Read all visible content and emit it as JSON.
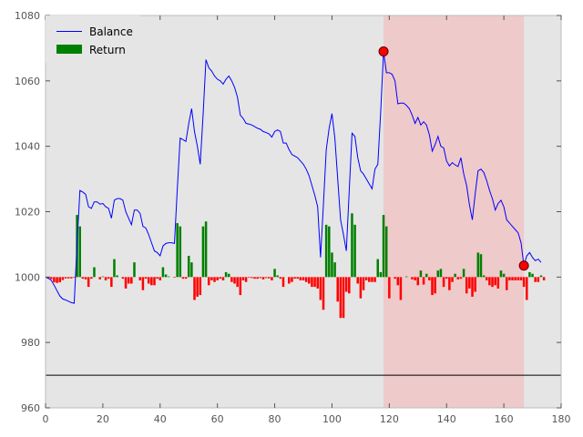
{
  "chart_data": {
    "type": "line",
    "title": "",
    "xlabel": "",
    "ylabel": "",
    "xlim": [
      0,
      180
    ],
    "ylim": [
      960,
      1080
    ],
    "x_ticks": [
      "0",
      "20",
      "40",
      "60",
      "80",
      "100",
      "120",
      "140",
      "160",
      "180"
    ],
    "y_ticks": [
      "960",
      "980",
      "1000",
      "1020",
      "1040",
      "1060",
      "1080"
    ],
    "grid": false,
    "legend_position": "top-left",
    "baseline": 970,
    "baseline_color": "#000000",
    "background_color": "#e5e5e5",
    "shaded_region": {
      "x_start": 118,
      "x_end": 167,
      "color": "#ff9999"
    },
    "markers": [
      {
        "x": 118,
        "y": 1069,
        "color": "#ff0000"
      },
      {
        "x": 167,
        "y": 1003.5,
        "color": "#ff0000"
      }
    ],
    "series": [
      {
        "name": "Balance",
        "kind": "line",
        "color": "#0000ff",
        "points": [
          [
            0,
            1000
          ],
          [
            1,
            999.6
          ],
          [
            2,
            999
          ],
          [
            3,
            997.5
          ],
          [
            4,
            995.8
          ],
          [
            5,
            994.2
          ],
          [
            6,
            993.3
          ],
          [
            7,
            993
          ],
          [
            8,
            992.6
          ],
          [
            9,
            992.2
          ],
          [
            10,
            992
          ],
          [
            11,
            1010
          ],
          [
            12,
            1026.5
          ],
          [
            13,
            1026
          ],
          [
            14,
            1025.3
          ],
          [
            15,
            1021.5
          ],
          [
            16,
            1021
          ],
          [
            17,
            1023
          ],
          [
            18,
            1023
          ],
          [
            19,
            1022.3
          ],
          [
            20,
            1022.5
          ],
          [
            21,
            1021.5
          ],
          [
            22,
            1021
          ],
          [
            23,
            1018
          ],
          [
            24,
            1023.5
          ],
          [
            25,
            1024
          ],
          [
            26,
            1024
          ],
          [
            27,
            1023.5
          ],
          [
            28,
            1020
          ],
          [
            29,
            1018
          ],
          [
            30,
            1016
          ],
          [
            31,
            1020.5
          ],
          [
            32,
            1020.5
          ],
          [
            33,
            1019.5
          ],
          [
            34,
            1015.5
          ],
          [
            35,
            1015
          ],
          [
            36,
            1013
          ],
          [
            37,
            1010.5
          ],
          [
            38,
            1008
          ],
          [
            39,
            1007.5
          ],
          [
            40,
            1006.5
          ],
          [
            41,
            1009.5
          ],
          [
            42,
            1010.3
          ],
          [
            43,
            1010.5
          ],
          [
            44,
            1010.5
          ],
          [
            45,
            1010.3
          ],
          [
            46,
            1027
          ],
          [
            47,
            1042.5
          ],
          [
            48,
            1042
          ],
          [
            49,
            1041.5
          ],
          [
            50,
            1047
          ],
          [
            51,
            1051.5
          ],
          [
            52,
            1044.5
          ],
          [
            53,
            1040
          ],
          [
            54,
            1034.5
          ],
          [
            55,
            1049.5
          ],
          [
            56,
            1066.5
          ],
          [
            57,
            1064
          ],
          [
            58,
            1063
          ],
          [
            59,
            1061.5
          ],
          [
            60,
            1060.5
          ],
          [
            61,
            1060
          ],
          [
            62,
            1059
          ],
          [
            63,
            1060.5
          ],
          [
            64,
            1061.5
          ],
          [
            65,
            1060
          ],
          [
            66,
            1058
          ],
          [
            67,
            1055
          ],
          [
            68,
            1049.5
          ],
          [
            69,
            1048.5
          ],
          [
            70,
            1047
          ],
          [
            71,
            1046.8
          ],
          [
            72,
            1046.5
          ],
          [
            73,
            1046
          ],
          [
            74,
            1045.5
          ],
          [
            75,
            1045.2
          ],
          [
            76,
            1044.5
          ],
          [
            77,
            1044.2
          ],
          [
            78,
            1043.8
          ],
          [
            79,
            1042.8
          ],
          [
            80,
            1044.5
          ],
          [
            81,
            1045
          ],
          [
            82,
            1044.5
          ],
          [
            83,
            1041
          ],
          [
            84,
            1041
          ],
          [
            85,
            1039
          ],
          [
            86,
            1037.5
          ],
          [
            87,
            1037
          ],
          [
            88,
            1036.5
          ],
          [
            89,
            1035.5
          ],
          [
            90,
            1034.5
          ],
          [
            91,
            1033
          ],
          [
            92,
            1031
          ],
          [
            93,
            1028
          ],
          [
            94,
            1025
          ],
          [
            95,
            1021.5
          ],
          [
            96,
            1006
          ],
          [
            97,
            1022
          ],
          [
            98,
            1039
          ],
          [
            99,
            1045.5
          ],
          [
            100,
            1050
          ],
          [
            101,
            1042.5
          ],
          [
            102,
            1030
          ],
          [
            103,
            1017.5
          ],
          [
            104,
            1013
          ],
          [
            105,
            1008
          ],
          [
            106,
            1026
          ],
          [
            107,
            1044
          ],
          [
            108,
            1043
          ],
          [
            109,
            1036.5
          ],
          [
            110,
            1032.5
          ],
          [
            111,
            1031.5
          ],
          [
            112,
            1030
          ],
          [
            113,
            1028.5
          ],
          [
            114,
            1027
          ],
          [
            115,
            1033
          ],
          [
            116,
            1034.5
          ],
          [
            117,
            1050.5
          ],
          [
            118,
            1069
          ],
          [
            119,
            1062.5
          ],
          [
            120,
            1062.5
          ],
          [
            121,
            1062
          ],
          [
            122,
            1060
          ],
          [
            123,
            1053
          ],
          [
            124,
            1053.2
          ],
          [
            125,
            1053.2
          ],
          [
            126,
            1052.5
          ],
          [
            127,
            1051.5
          ],
          [
            128,
            1049.5
          ],
          [
            129,
            1047
          ],
          [
            130,
            1048.8
          ],
          [
            131,
            1046.5
          ],
          [
            132,
            1047.5
          ],
          [
            133,
            1046.5
          ],
          [
            134,
            1043.5
          ],
          [
            135,
            1038.5
          ],
          [
            136,
            1040.5
          ],
          [
            137,
            1043
          ],
          [
            138,
            1040
          ],
          [
            139,
            1039.5
          ],
          [
            140,
            1035.5
          ],
          [
            141,
            1034
          ],
          [
            142,
            1035
          ],
          [
            143,
            1034.3
          ],
          [
            144,
            1033.8
          ],
          [
            145,
            1036.5
          ],
          [
            146,
            1031.5
          ],
          [
            147,
            1028
          ],
          [
            148,
            1022
          ],
          [
            149,
            1017.5
          ],
          [
            150,
            1025.5
          ],
          [
            151,
            1032.5
          ],
          [
            152,
            1033
          ],
          [
            153,
            1032
          ],
          [
            154,
            1029.5
          ],
          [
            155,
            1026.5
          ],
          [
            156,
            1024
          ],
          [
            157,
            1020.5
          ],
          [
            158,
            1022.5
          ],
          [
            159,
            1023.5
          ],
          [
            160,
            1021.5
          ],
          [
            161,
            1017.5
          ],
          [
            162,
            1016.5
          ],
          [
            163,
            1015.5
          ],
          [
            164,
            1014.5
          ],
          [
            165,
            1013.5
          ],
          [
            166,
            1010.5
          ],
          [
            167,
            1003.5
          ],
          [
            168,
            1006.5
          ],
          [
            169,
            1007.5
          ],
          [
            170,
            1006
          ],
          [
            171,
            1005
          ],
          [
            172,
            1005.5
          ],
          [
            173,
            1004.5
          ]
        ]
      },
      {
        "name": "Return",
        "kind": "bar",
        "color": "#008000",
        "negative_color": "#ff0000",
        "values": [
          0,
          -0.4,
          -0.6,
          -1.6,
          -1.8,
          -1.6,
          -0.9,
          -0.4,
          -0.4,
          -0.4,
          -0.2,
          19,
          15.5,
          -0.5,
          -0.7,
          -3,
          -0.5,
          3,
          0,
          -0.7,
          0.2,
          -1,
          -0.5,
          -3,
          5.5,
          0.5,
          0,
          -0.5,
          -3.5,
          -2,
          -2,
          4.5,
          0,
          -1,
          -4,
          -0.5,
          -2,
          -2.5,
          -2.5,
          -0.5,
          -1,
          3,
          0.8,
          0.2,
          0,
          -0.2,
          16.5,
          15.5,
          -0.5,
          -0.5,
          6.5,
          4.5,
          -7,
          -6,
          -5.5,
          15.5,
          17,
          -2.5,
          -1,
          -1.5,
          -1,
          -0.5,
          -1,
          1.5,
          1,
          -1.5,
          -2,
          -3,
          -5.5,
          -1,
          -1.5,
          -0.2,
          -0.3,
          -0.5,
          -0.5,
          -0.3,
          -0.7,
          -0.3,
          -0.4,
          -1,
          2.5,
          0.5,
          -0.5,
          -3,
          0,
          -2,
          -1.5,
          -0.5,
          -0.5,
          -1,
          -1,
          -1.5,
          -2,
          -3,
          -3,
          -3.5,
          -7,
          -10,
          16,
          15.5,
          7.5,
          4.5,
          -7.5,
          -12.5,
          -12.5,
          -4.5,
          -5,
          19.5,
          16,
          -2,
          -6.5,
          -4,
          -1,
          -1.5,
          -1.5,
          -1.5,
          5.5,
          1.5,
          19,
          15.5,
          -6.5,
          0,
          -0.5,
          -2.5,
          -7,
          0,
          0.2,
          0,
          -0.7,
          -1,
          -2.5,
          2,
          -2.3,
          1,
          -1,
          -5.5,
          -5,
          2,
          2.5,
          -3,
          -0.5,
          -4,
          -1.5,
          1,
          -0.7,
          -0.5,
          2.5,
          -5,
          -3.5,
          -6,
          -4.5,
          7.5,
          7,
          0.5,
          -1,
          -2.5,
          -3,
          -2.5,
          -3.5,
          2,
          1,
          -4,
          -1,
          -1,
          -1,
          -1,
          -1,
          -3,
          -7,
          1.5,
          1,
          -1.5,
          -1.5,
          0.5,
          -1
        ]
      }
    ]
  }
}
